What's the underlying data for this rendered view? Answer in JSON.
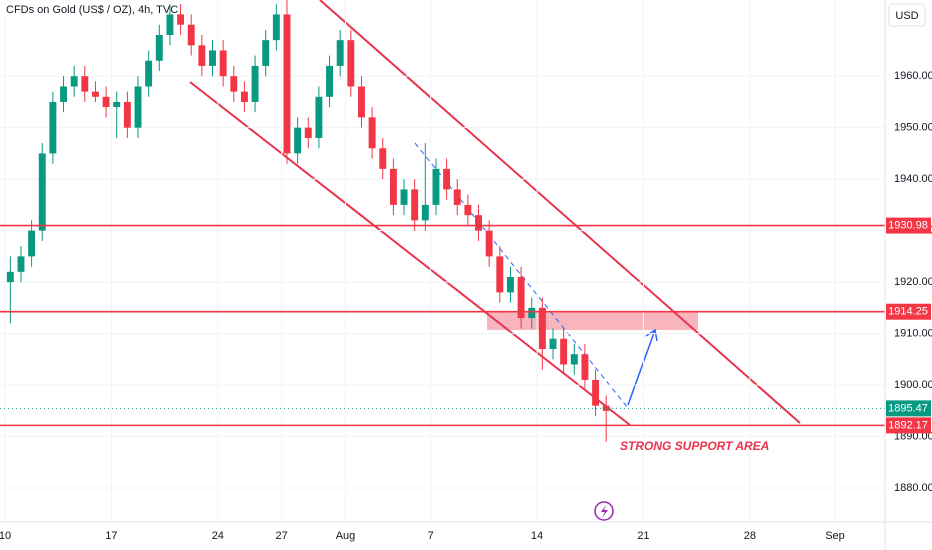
{
  "chart_data": {
    "type": "candlestick",
    "title": "CFDs on Gold (US$ / OZ), 4h, TVC",
    "currency": "USD",
    "annotation": "STRONG SUPPORT AREA",
    "up_color": "#089981",
    "down_color": "#f23645",
    "x": [
      0.25,
      0.75,
      1.25,
      1.75,
      2.25,
      2.75,
      3.25,
      3.75,
      4.25,
      4.75,
      5.25,
      5.75,
      6.25,
      6.75,
      7.25,
      7.75,
      8.25,
      8.75,
      9.25,
      9.75,
      10.25,
      10.75,
      11.25,
      11.75,
      12.25,
      12.75,
      13.25,
      13.75,
      14.25,
      14.75,
      15.25,
      15.75,
      16.25,
      16.75,
      17.25,
      17.75,
      18.25,
      18.75,
      19.25,
      19.75,
      20.25,
      20.75,
      21.25,
      21.75,
      22.25,
      22.75,
      23.25,
      23.75,
      24.25,
      24.75,
      25.25,
      25.75,
      26.25,
      26.75,
      27.25,
      27.75,
      28.25
    ],
    "open": [
      1920,
      1922,
      1925,
      1930,
      1945,
      1955,
      1958,
      1960,
      1957,
      1956,
      1954,
      1955,
      1950,
      1958,
      1963,
      1968,
      1972,
      1970,
      1966,
      1962,
      1965,
      1960,
      1957,
      1955,
      1962,
      1967,
      1972,
      1945,
      1950,
      1948,
      1956,
      1962,
      1967,
      1958,
      1952,
      1946,
      1942,
      1935,
      1938,
      1932,
      1935,
      1942,
      1938,
      1935,
      1933,
      1930,
      1925,
      1918,
      1921,
      1913,
      1915,
      1907,
      1909,
      1904,
      1906,
      1901,
      1896
    ],
    "high": [
      1925,
      1927,
      1932,
      1947,
      1957,
      1960,
      1962,
      1962,
      1959,
      1958,
      1957,
      1957,
      1960,
      1965,
      1970,
      1974,
      1974,
      1972,
      1968,
      1967,
      1967,
      1962,
      1959,
      1964,
      1969,
      1974,
      1975,
      1952,
      1952,
      1958,
      1964,
      1969,
      1969,
      1960,
      1954,
      1948,
      1944,
      1940,
      1940,
      1947,
      1944,
      1944,
      1940,
      1937,
      1935,
      1932,
      1927,
      1923,
      1923,
      1917,
      1917,
      1911,
      1911,
      1908,
      1908,
      1903,
      1898
    ],
    "low": [
      1912,
      1920,
      1923,
      1928,
      1943,
      1953,
      1956,
      1955,
      1955,
      1952,
      1948,
      1948,
      1948,
      1956,
      1961,
      1966,
      1968,
      1964,
      1960,
      1960,
      1958,
      1955,
      1953,
      1953,
      1960,
      1965,
      1943,
      1943,
      1946,
      1946,
      1954,
      1960,
      1956,
      1950,
      1944,
      1940,
      1933,
      1933,
      1930,
      1930,
      1933,
      1936,
      1933,
      1931,
      1928,
      1923,
      1916,
      1916,
      1911,
      1911,
      1903,
      1905,
      1902,
      1902,
      1899,
      1894,
      1889
    ],
    "close": [
      1922,
      1925,
      1930,
      1945,
      1955,
      1958,
      1960,
      1957,
      1956,
      1954,
      1955,
      1950,
      1958,
      1963,
      1968,
      1972,
      1970,
      1966,
      1962,
      1965,
      1960,
      1957,
      1955,
      1962,
      1967,
      1972,
      1945,
      1950,
      1948,
      1956,
      1962,
      1967,
      1958,
      1952,
      1946,
      1942,
      1935,
      1938,
      1932,
      1935,
      1942,
      1938,
      1935,
      1933,
      1930,
      1925,
      1918,
      1921,
      1913,
      1915,
      1907,
      1909,
      1904,
      1906,
      1901,
      1896,
      1895
    ],
    "xlim": [
      -0.235,
      41.35
    ],
    "xticks": [
      {
        "value": 0,
        "label": "10"
      },
      {
        "value": 5,
        "label": "17"
      },
      {
        "value": 10,
        "label": "24"
      },
      {
        "value": 13,
        "label": "27"
      },
      {
        "value": 16,
        "label": "Aug"
      },
      {
        "value": 20,
        "label": "7"
      },
      {
        "value": 25,
        "label": "14"
      },
      {
        "value": 30,
        "label": "21"
      },
      {
        "value": 35,
        "label": "28"
      },
      {
        "value": 39,
        "label": "Sep"
      }
    ],
    "ylim": [
      1873.4,
      1974.8
    ],
    "yticks": [
      {
        "value": 1880,
        "label": "1880.00"
      },
      {
        "value": 1890,
        "label": "1890.00"
      },
      {
        "value": 1900,
        "label": "1900.00"
      },
      {
        "value": 1910,
        "label": "1910.00"
      },
      {
        "value": 1920,
        "label": "1920.00"
      },
      {
        "value": 1930,
        "label": "1930.00"
      },
      {
        "value": 1940,
        "label": "1940.00"
      },
      {
        "value": 1950,
        "label": "1950.00"
      },
      {
        "value": 1960,
        "label": "1960.00"
      }
    ],
    "levels": [
      {
        "value": 1930.98,
        "color": "#f23645"
      },
      {
        "value": 1914.25,
        "color": "#f23645"
      },
      {
        "value": 1892.17,
        "color": "#f23645"
      }
    ],
    "last_price": {
      "value": 1895.47,
      "color": "#089981"
    }
  }
}
